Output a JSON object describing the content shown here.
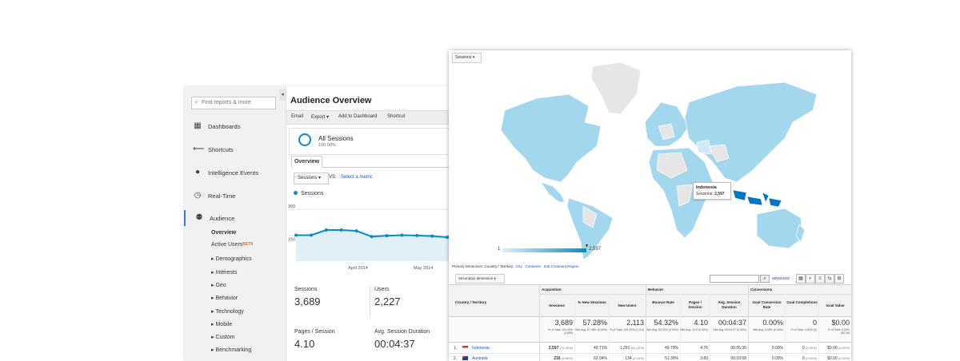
{
  "colors": {
    "accent": "#058dc7",
    "link": "#1a56b8",
    "map_high": "#0077c0",
    "map_low": "#a3d7ee",
    "map_none": "#e6e6e6"
  },
  "sidebar": {
    "search_placeholder": "Find reports & more",
    "collapse_glyph": "◂",
    "items": [
      {
        "label": "Dashboards",
        "icon": "dashboard-icon"
      },
      {
        "label": "Shortcuts",
        "icon": "shortcut-arrow-icon"
      },
      {
        "label": "Intelligence Events",
        "icon": "lightbulb-icon"
      },
      {
        "label": "Real-Time",
        "icon": "clock-icon"
      },
      {
        "label": "Audience",
        "icon": "people-icon"
      }
    ],
    "subitems": [
      "Overview",
      "Active Users",
      "Demographics",
      "Interests",
      "Geo",
      "Behavior",
      "Technology",
      "Mobile",
      "Custom",
      "Benchmarking"
    ],
    "beta": "BETA"
  },
  "report": {
    "title": "Audience Overview",
    "toolbar": [
      "Email",
      "Export ▾",
      "Add to Dashboard",
      "Shortcut"
    ],
    "segment": {
      "name": "All Sessions",
      "percent": "100.00%"
    },
    "tab": "Overview",
    "metric_select": "Sessions",
    "vs": "VS.",
    "select_metric": "Select a metric",
    "legend": "Sessions",
    "chart_data": {
      "type": "line",
      "title": "",
      "series": [
        {
          "name": "Sessions",
          "values": [
            150,
            150,
            180,
            180,
            175,
            142,
            147,
            150,
            148,
            145,
            138,
            180
          ]
        }
      ],
      "ylim": [
        0,
        300
      ],
      "yticks": [
        "300",
        "150"
      ],
      "xticks": [
        "April 2014",
        "May 2014"
      ],
      "grid": true,
      "legend": "top-left"
    },
    "kpis": [
      {
        "label": "Sessions",
        "value": "3,689"
      },
      {
        "label": "Users",
        "value": "2,227"
      },
      {
        "label": "Pages / Session",
        "value": "4.10"
      },
      {
        "label": "Avg. Session Duration",
        "value": "00:04:37"
      }
    ]
  },
  "geo": {
    "metric_select": "Sessions",
    "tooltip": {
      "country": "Indonesia",
      "label": "Sessions:",
      "value": "2,597"
    },
    "scale": {
      "min": "1",
      "max": "2,597"
    },
    "primary_dimension": {
      "label": "Primary Dimension:",
      "selected": "Country / Territory",
      "options": [
        "City",
        "Continent",
        "Sub Continent Region"
      ]
    },
    "secondary_dimension": "Secondary dimension",
    "advanced": "advanced",
    "table": {
      "groups": {
        "acquisition": "Acquisition",
        "behavior": "Behavior",
        "conversions": "Conversions"
      },
      "goal_select": "Goal Set 1",
      "columns": [
        "Country / Territory",
        "Sessions",
        "% New Sessions",
        "New Users",
        "Bounce Rate",
        "Pages / Session",
        "Avg. Session Duration",
        "Goal Conversion Rate",
        "Goal Completions",
        "Goal Value"
      ],
      "totals": {
        "values": [
          "3,689",
          "57.28%",
          "2,113",
          "54.32%",
          "4.10",
          "00:04:37",
          "0.00%",
          "0",
          "$0.00"
        ],
        "subs": [
          "% of Total: 100.00% (3,689)",
          "Site Avg: 57.28% (0.00%)",
          "% of Total: 100.00% (2,113)",
          "Site Avg: 54.32% (0.00%)",
          "Site Avg: 4.10 (0.00%)",
          "Site Avg: 00:04:37 (0.00%)",
          "Site Avg: 0.00% (0.00%)",
          "% of Total: 0.00% (0)",
          "% of Total: 0.00% ($0.00)"
        ]
      },
      "rows": [
        {
          "rank": "1.",
          "country": "Indonesia",
          "sessions": "2,597",
          "sessions_pct": "(70.40%)",
          "new_sessions": "49.71%",
          "new_users": "1,291",
          "new_users_pct": "(61.10%)",
          "bounce": "49.79%",
          "pages": "4.76",
          "duration": "00:05:35",
          "conv": "0.00%",
          "completions": "0",
          "completions_pct": "(0.00%)",
          "value": "$0.00",
          "value_pct": "(0.00%)"
        },
        {
          "rank": "2.",
          "country": "Australia",
          "sessions": "216",
          "sessions_pct": "(5.86%)",
          "new_sessions": "62.04%",
          "new_users": "134",
          "new_users_pct": "(6.34%)",
          "bounce": "51.39%",
          "pages": "3.80",
          "duration": "00:03:58",
          "conv": "0.00%",
          "completions": "0",
          "completions_pct": "(0.00%)",
          "value": "$0.00",
          "value_pct": "(0.00%)"
        }
      ]
    }
  }
}
